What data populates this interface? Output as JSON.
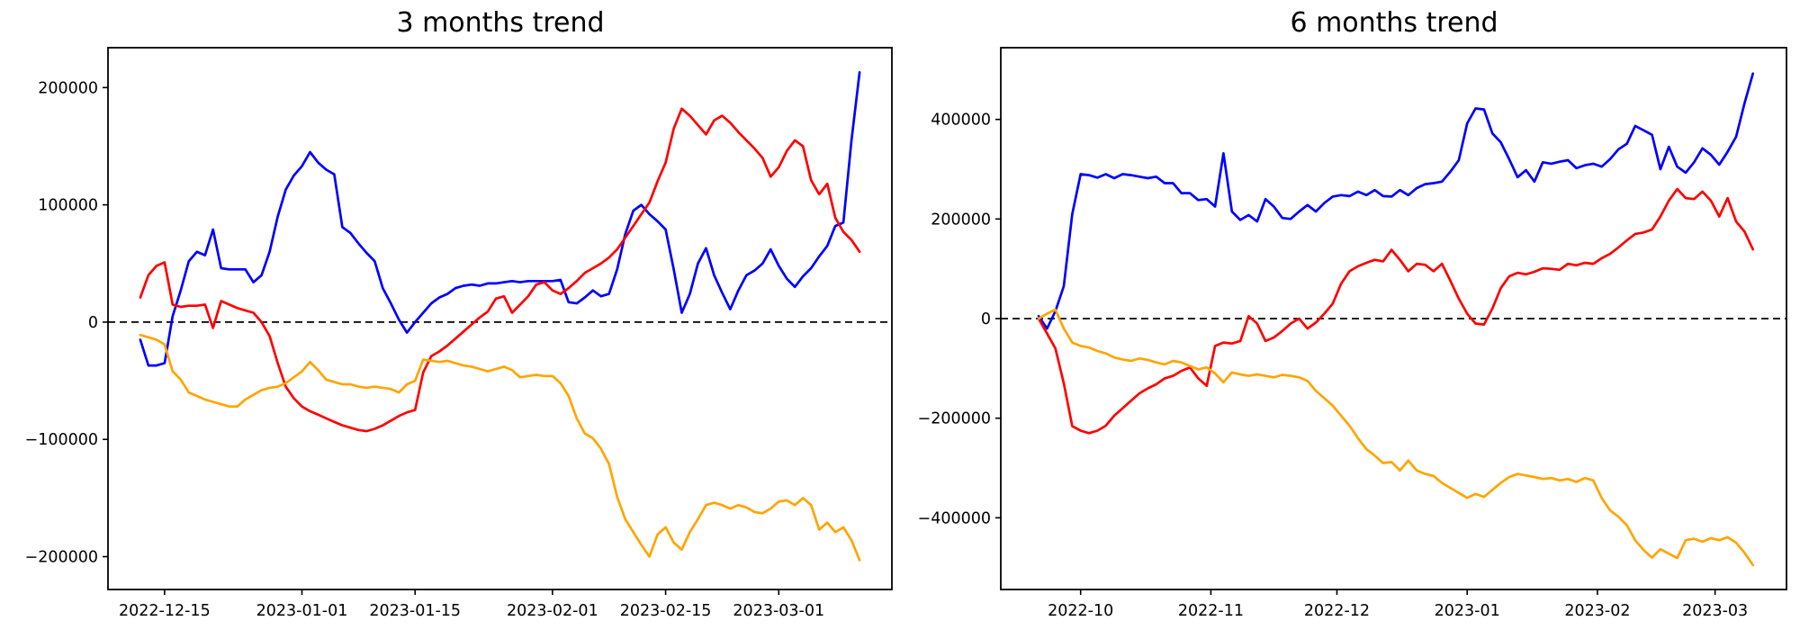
{
  "figure": {
    "background": "#ffffff"
  },
  "chart_data": [
    {
      "type": "line",
      "title": "3 months trend",
      "xlabel": "",
      "ylabel": "",
      "grid": false,
      "legend": null,
      "xlim": [
        "2022-12-08",
        "2023-03-15"
      ],
      "ylim": [
        -228000,
        234000
      ],
      "zero_line": {
        "value": 0,
        "style": "dashed",
        "color": "#000000"
      },
      "xticks": [
        {
          "date": "2022-12-15",
          "label": "2022-12-15"
        },
        {
          "date": "2023-01-01",
          "label": "2023-01-01"
        },
        {
          "date": "2023-01-15",
          "label": "2023-01-15"
        },
        {
          "date": "2023-02-01",
          "label": "2023-02-01"
        },
        {
          "date": "2023-02-15",
          "label": "2023-02-15"
        },
        {
          "date": "2023-03-01",
          "label": "2023-03-01"
        }
      ],
      "yticks": [
        {
          "value": 200000,
          "label": "200000"
        },
        {
          "value": 100000,
          "label": "100000"
        },
        {
          "value": 0,
          "label": "0"
        },
        {
          "value": -100000,
          "label": "−100000"
        },
        {
          "value": -200000,
          "label": "−200000"
        }
      ],
      "x": [
        "2022-12-12",
        "2022-12-13",
        "2022-12-14",
        "2022-12-15",
        "2022-12-16",
        "2022-12-17",
        "2022-12-18",
        "2022-12-19",
        "2022-12-20",
        "2022-12-21",
        "2022-12-22",
        "2022-12-23",
        "2022-12-24",
        "2022-12-25",
        "2022-12-26",
        "2022-12-27",
        "2022-12-28",
        "2022-12-29",
        "2022-12-30",
        "2022-12-31",
        "2023-01-01",
        "2023-01-02",
        "2023-01-03",
        "2023-01-04",
        "2023-01-05",
        "2023-01-06",
        "2023-01-07",
        "2023-01-08",
        "2023-01-09",
        "2023-01-10",
        "2023-01-11",
        "2023-01-12",
        "2023-01-13",
        "2023-01-14",
        "2023-01-15",
        "2023-01-16",
        "2023-01-17",
        "2023-01-18",
        "2023-01-19",
        "2023-01-20",
        "2023-01-21",
        "2023-01-22",
        "2023-01-23",
        "2023-01-24",
        "2023-01-25",
        "2023-01-26",
        "2023-01-27",
        "2023-01-28",
        "2023-01-29",
        "2023-01-30",
        "2023-01-31",
        "2023-02-01",
        "2023-02-02",
        "2023-02-03",
        "2023-02-04",
        "2023-02-05",
        "2023-02-06",
        "2023-02-07",
        "2023-02-08",
        "2023-02-09",
        "2023-02-10",
        "2023-02-11",
        "2023-02-12",
        "2023-02-13",
        "2023-02-14",
        "2023-02-15",
        "2023-02-16",
        "2023-02-17",
        "2023-02-18",
        "2023-02-19",
        "2023-02-20",
        "2023-02-21",
        "2023-02-22",
        "2023-02-23",
        "2023-02-24",
        "2023-02-25",
        "2023-02-26",
        "2023-02-27",
        "2023-02-28",
        "2023-03-01",
        "2023-03-02",
        "2023-03-03",
        "2023-03-04",
        "2023-03-05",
        "2023-03-06",
        "2023-03-07",
        "2023-03-08",
        "2023-03-09",
        "2023-03-10",
        "2023-03-11"
      ],
      "series": [
        {
          "name": "series-blue",
          "color": "#0000ff",
          "values": [
            -15000,
            -37000,
            -37000,
            -35000,
            5000,
            27000,
            52000,
            60000,
            57000,
            79000,
            46000,
            45000,
            45000,
            45000,
            34000,
            40000,
            60000,
            90000,
            113000,
            125000,
            133000,
            145000,
            136000,
            130000,
            126000,
            81000,
            76000,
            67000,
            59000,
            52000,
            29000,
            16000,
            2000,
            -9000,
            0,
            8000,
            16000,
            21000,
            24000,
            29000,
            31000,
            32000,
            31000,
            33000,
            33000,
            34000,
            35000,
            34000,
            35000,
            35000,
            35000,
            35000,
            36000,
            17000,
            16000,
            21000,
            27000,
            22000,
            24000,
            45000,
            75000,
            95000,
            100000,
            92000,
            86000,
            79000,
            45000,
            8000,
            24000,
            50000,
            63000,
            40000,
            25000,
            11000,
            27000,
            40000,
            44000,
            50000,
            62000,
            48000,
            37000,
            30000,
            39000,
            46000,
            56000,
            65000,
            82000,
            85000,
            155000,
            213000
          ]
        },
        {
          "name": "series-red",
          "color": "#ff0000",
          "values": [
            21000,
            40000,
            48000,
            51000,
            15000,
            13000,
            14000,
            14000,
            15000,
            -5000,
            18000,
            15000,
            12000,
            10000,
            8000,
            0,
            -12000,
            -35000,
            -55000,
            -65000,
            -72000,
            -76000,
            -79000,
            -82000,
            -85000,
            -88000,
            -90000,
            -92000,
            -93000,
            -91000,
            -88000,
            -84000,
            -80000,
            -77000,
            -75000,
            -43000,
            -29000,
            -25000,
            -20000,
            -14000,
            -8000,
            -2000,
            4000,
            9000,
            20000,
            22000,
            8000,
            15000,
            22000,
            32000,
            34000,
            27000,
            24000,
            29000,
            35000,
            42000,
            46000,
            50000,
            55000,
            62000,
            72000,
            82000,
            92000,
            102000,
            120000,
            136000,
            165000,
            182000,
            176000,
            168000,
            160000,
            172000,
            176000,
            170000,
            162000,
            155000,
            148000,
            140000,
            124000,
            132000,
            146000,
            155000,
            150000,
            121000,
            109000,
            118000,
            89000,
            77000,
            70000,
            60000
          ]
        },
        {
          "name": "series-orange",
          "color": "#ffa500",
          "values": [
            -11000,
            -13000,
            -15000,
            -19000,
            -42000,
            -49000,
            -60000,
            -63000,
            -66000,
            -68000,
            -70000,
            -72000,
            -72000,
            -66000,
            -62000,
            -58000,
            -56000,
            -55000,
            -52000,
            -47000,
            -42000,
            -34000,
            -41000,
            -49000,
            -51000,
            -53000,
            -53000,
            -55000,
            -56000,
            -55000,
            -56000,
            -57000,
            -60000,
            -53000,
            -50000,
            -32000,
            -33000,
            -34000,
            -33000,
            -35000,
            -37000,
            -38000,
            -40000,
            -42000,
            -40000,
            -38000,
            -41000,
            -47000,
            -46000,
            -45000,
            -46000,
            -46000,
            -52000,
            -63000,
            -82000,
            -95000,
            -99000,
            -108000,
            -121000,
            -149000,
            -168000,
            -179000,
            -190000,
            -200000,
            -181000,
            -175000,
            -188000,
            -194000,
            -179000,
            -168000,
            -156000,
            -154000,
            -156000,
            -159000,
            -156000,
            -158000,
            -162000,
            -163000,
            -159000,
            -153000,
            -152000,
            -156000,
            -150000,
            -156000,
            -177000,
            -171000,
            -179000,
            -175000,
            -186000,
            -203000
          ]
        }
      ]
    },
    {
      "type": "line",
      "title": "6 months trend",
      "xlabel": "",
      "ylabel": "",
      "grid": false,
      "legend": null,
      "xlim": [
        "2022-09-12",
        "2023-03-18"
      ],
      "ylim": [
        -544000,
        544000
      ],
      "zero_line": {
        "value": 0,
        "style": "dashed",
        "color": "#000000"
      },
      "xticks": [
        {
          "date": "2022-10-01",
          "label": "2022-10"
        },
        {
          "date": "2022-11-01",
          "label": "2022-11"
        },
        {
          "date": "2022-12-01",
          "label": "2022-12"
        },
        {
          "date": "2023-01-01",
          "label": "2023-01"
        },
        {
          "date": "2023-02-01",
          "label": "2023-02"
        },
        {
          "date": "2023-03-01",
          "label": "2023-03"
        }
      ],
      "yticks": [
        {
          "value": 400000,
          "label": "400000"
        },
        {
          "value": 200000,
          "label": "200000"
        },
        {
          "value": 0,
          "label": "0"
        },
        {
          "value": -200000,
          "label": "−200000"
        },
        {
          "value": -400000,
          "label": "−400000"
        }
      ],
      "x": [
        "2022-09-21",
        "2022-09-23",
        "2022-09-25",
        "2022-09-27",
        "2022-09-29",
        "2022-10-01",
        "2022-10-03",
        "2022-10-05",
        "2022-10-07",
        "2022-10-09",
        "2022-10-11",
        "2022-10-13",
        "2022-10-15",
        "2022-10-17",
        "2022-10-19",
        "2022-10-21",
        "2022-10-23",
        "2022-10-25",
        "2022-10-27",
        "2022-10-29",
        "2022-10-31",
        "2022-11-02",
        "2022-11-04",
        "2022-11-06",
        "2022-11-08",
        "2022-11-10",
        "2022-11-12",
        "2022-11-14",
        "2022-11-16",
        "2022-11-18",
        "2022-11-20",
        "2022-11-22",
        "2022-11-24",
        "2022-11-26",
        "2022-11-28",
        "2022-11-30",
        "2022-12-02",
        "2022-12-04",
        "2022-12-06",
        "2022-12-08",
        "2022-12-10",
        "2022-12-12",
        "2022-12-14",
        "2022-12-16",
        "2022-12-18",
        "2022-12-20",
        "2022-12-22",
        "2022-12-24",
        "2022-12-26",
        "2022-12-28",
        "2022-12-30",
        "2023-01-01",
        "2023-01-03",
        "2023-01-05",
        "2023-01-07",
        "2023-01-09",
        "2023-01-11",
        "2023-01-13",
        "2023-01-15",
        "2023-01-17",
        "2023-01-19",
        "2023-01-21",
        "2023-01-23",
        "2023-01-25",
        "2023-01-27",
        "2023-01-29",
        "2023-01-31",
        "2023-02-02",
        "2023-02-04",
        "2023-02-06",
        "2023-02-08",
        "2023-02-10",
        "2023-02-12",
        "2023-02-14",
        "2023-02-16",
        "2023-02-18",
        "2023-02-20",
        "2023-02-22",
        "2023-02-24",
        "2023-02-26",
        "2023-02-28",
        "2023-03-02",
        "2023-03-04",
        "2023-03-06",
        "2023-03-08",
        "2023-03-10"
      ],
      "series": [
        {
          "name": "series-blue",
          "color": "#0000ff",
          "values": [
            5000,
            -20000,
            15000,
            65000,
            210000,
            290000,
            288000,
            283000,
            290000,
            282000,
            290000,
            288000,
            285000,
            282000,
            285000,
            272000,
            272000,
            252000,
            252000,
            238000,
            240000,
            225000,
            332000,
            215000,
            198000,
            208000,
            195000,
            240000,
            225000,
            202000,
            200000,
            215000,
            228000,
            215000,
            232000,
            245000,
            248000,
            246000,
            255000,
            248000,
            258000,
            246000,
            245000,
            258000,
            248000,
            262000,
            270000,
            272000,
            275000,
            295000,
            318000,
            392000,
            422000,
            420000,
            372000,
            354000,
            320000,
            284000,
            298000,
            275000,
            314000,
            311000,
            315000,
            318000,
            302000,
            308000,
            311000,
            305000,
            320000,
            340000,
            351000,
            387000,
            378000,
            369000,
            300000,
            345000,
            305000,
            293000,
            314000,
            342000,
            329000,
            309000,
            335000,
            365000,
            432000,
            492000
          ]
        },
        {
          "name": "series-red",
          "color": "#ff0000",
          "values": [
            0,
            -30000,
            -60000,
            -130000,
            -216000,
            -225000,
            -230000,
            -225000,
            -215000,
            -195000,
            -180000,
            -165000,
            -150000,
            -140000,
            -132000,
            -120000,
            -115000,
            -105000,
            -98000,
            -120000,
            -135000,
            -55000,
            -48000,
            -50000,
            -45000,
            5000,
            -10000,
            -45000,
            -38000,
            -25000,
            -10000,
            0,
            -20000,
            -8000,
            10000,
            30000,
            70000,
            95000,
            105000,
            112000,
            118000,
            115000,
            138000,
            118000,
            95000,
            110000,
            108000,
            95000,
            110000,
            76000,
            40000,
            10000,
            -10000,
            -12000,
            20000,
            61000,
            85000,
            92000,
            89000,
            94000,
            101000,
            100000,
            98000,
            110000,
            107000,
            112000,
            110000,
            121000,
            130000,
            143000,
            157000,
            170000,
            173000,
            179000,
            205000,
            237000,
            260000,
            242000,
            240000,
            255000,
            237000,
            205000,
            242000,
            195000,
            175000,
            139000
          ]
        },
        {
          "name": "series-orange",
          "color": "#ffa500",
          "values": [
            0,
            10000,
            18000,
            -20000,
            -48000,
            -55000,
            -58000,
            -65000,
            -70000,
            -78000,
            -82000,
            -85000,
            -80000,
            -83000,
            -88000,
            -92000,
            -85000,
            -88000,
            -95000,
            -102000,
            -98000,
            -110000,
            -128000,
            -108000,
            -112000,
            -115000,
            -112000,
            -115000,
            -118000,
            -113000,
            -115000,
            -118000,
            -125000,
            -145000,
            -160000,
            -175000,
            -195000,
            -215000,
            -240000,
            -262000,
            -275000,
            -290000,
            -288000,
            -305000,
            -285000,
            -305000,
            -312000,
            -316000,
            -330000,
            -340000,
            -350000,
            -360000,
            -352000,
            -358000,
            -344000,
            -330000,
            -318000,
            -312000,
            -315000,
            -318000,
            -322000,
            -320000,
            -325000,
            -322000,
            -328000,
            -320000,
            -325000,
            -360000,
            -385000,
            -398000,
            -415000,
            -445000,
            -465000,
            -480000,
            -463000,
            -472000,
            -481000,
            -445000,
            -442000,
            -448000,
            -441000,
            -445000,
            -439000,
            -450000,
            -470000,
            -495000
          ]
        }
      ]
    }
  ]
}
